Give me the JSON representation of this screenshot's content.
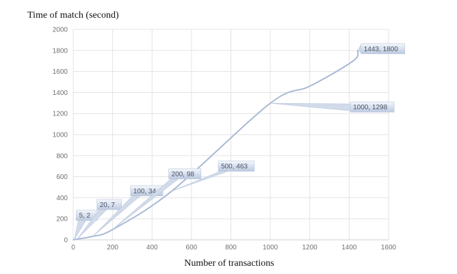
{
  "chart_data": {
    "type": "line",
    "title": "",
    "xlabel": "Number of transactions",
    "ylabel": "Time of match (second)",
    "xlim": [
      0,
      1600
    ],
    "ylim": [
      0,
      2000
    ],
    "x_ticks": [
      0,
      200,
      400,
      600,
      800,
      1000,
      1200,
      1400,
      1600
    ],
    "y_ticks": [
      0,
      200,
      400,
      600,
      800,
      1000,
      1200,
      1400,
      1600,
      1800,
      2000
    ],
    "grid": true,
    "series": [
      {
        "color": "#a9b9d4",
        "points": [
          {
            "x": 0,
            "y": 0
          },
          {
            "x": 5,
            "y": 2
          },
          {
            "x": 20,
            "y": 7
          },
          {
            "x": 100,
            "y": 34
          },
          {
            "x": 200,
            "y": 98
          },
          {
            "x": 500,
            "y": 463
          },
          {
            "x": 1000,
            "y": 1298
          },
          {
            "x": 1200,
            "y": 1460
          },
          {
            "x": 1420,
            "y": 1700
          },
          {
            "x": 1443,
            "y": 1800
          }
        ]
      }
    ],
    "annotations": [
      {
        "x": 5,
        "y": 2,
        "label": "5, 2"
      },
      {
        "x": 20,
        "y": 7,
        "label": "20, 7"
      },
      {
        "x": 100,
        "y": 34,
        "label": "100, 34"
      },
      {
        "x": 200,
        "y": 98,
        "label": "200, 98"
      },
      {
        "x": 500,
        "y": 463,
        "label": "500, 463"
      },
      {
        "x": 1000,
        "y": 1298,
        "label": "1000, 1298"
      },
      {
        "x": 1443,
        "y": 1800,
        "label": "1443, 1800"
      }
    ]
  }
}
